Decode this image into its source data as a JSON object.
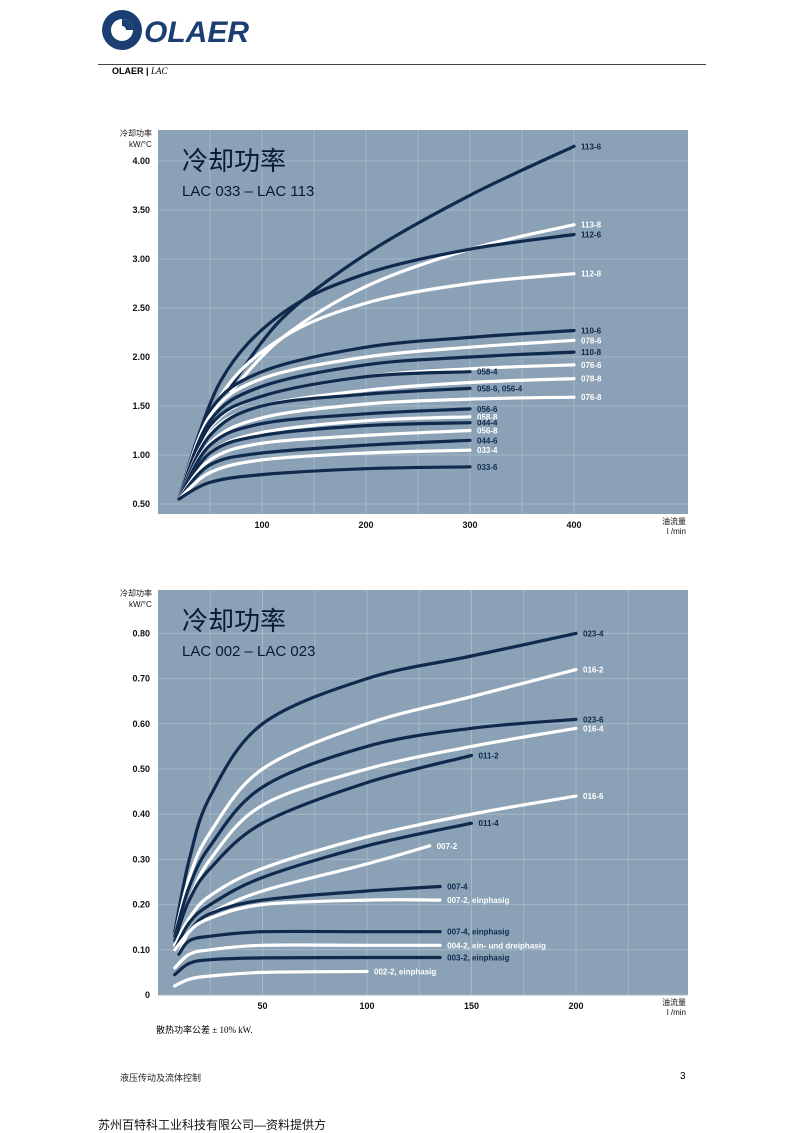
{
  "header": {
    "brand": "OLAER",
    "sub_brand": "OLAER |",
    "sub_product": "LAC"
  },
  "colors": {
    "panel": "#8aa1b6",
    "grid": "#a6b8c9",
    "dark_curve": "#0f2a4d",
    "light_curve": "#ffffff",
    "brand_blue": "#1c3f73"
  },
  "chart_data": [
    {
      "type": "line",
      "title": "冷却功率",
      "subtitle": "LAC 033 – LAC 113",
      "ylabel": "冷却功率",
      "yunit": "kW/°C",
      "xlabel": "油流量",
      "xunit": "l /min",
      "xlim": [
        0,
        400
      ],
      "ylim": [
        0.5,
        4.25
      ],
      "xticks": [
        "100",
        "200",
        "300",
        "400"
      ],
      "yticks": [
        "0.50",
        "1.00",
        "1.50",
        "2.00",
        "2.50",
        "3.00",
        "3.50",
        "4.00"
      ],
      "series": [
        {
          "name": "113-6",
          "color": "dark",
          "x": [
            70,
            120,
            200,
            300,
            400
          ],
          "y": [
            1.7,
            2.4,
            3.05,
            3.65,
            4.15
          ]
        },
        {
          "name": "113-8",
          "color": "light",
          "x": [
            70,
            120,
            200,
            300,
            400
          ],
          "y": [
            1.65,
            2.2,
            2.72,
            3.1,
            3.35
          ]
        },
        {
          "name": "112-6",
          "color": "dark",
          "x": [
            20,
            60,
            120,
            200,
            300,
            400
          ],
          "y": [
            0.55,
            1.75,
            2.45,
            2.85,
            3.1,
            3.25
          ]
        },
        {
          "name": "112-8",
          "color": "light",
          "x": [
            20,
            60,
            120,
            200,
            300,
            400
          ],
          "y": [
            0.55,
            1.6,
            2.2,
            2.55,
            2.75,
            2.85
          ]
        },
        {
          "name": "110-6",
          "color": "dark",
          "x": [
            20,
            50,
            100,
            200,
            300,
            400
          ],
          "y": [
            0.55,
            1.45,
            1.85,
            2.1,
            2.2,
            2.27
          ]
        },
        {
          "name": "078-6",
          "color": "light",
          "x": [
            20,
            50,
            100,
            200,
            300,
            400
          ],
          "y": [
            0.55,
            1.4,
            1.78,
            2.0,
            2.1,
            2.17
          ]
        },
        {
          "name": "110-8",
          "color": "dark",
          "x": [
            20,
            50,
            100,
            200,
            300,
            400
          ],
          "y": [
            0.55,
            1.35,
            1.7,
            1.92,
            2.0,
            2.05
          ]
        },
        {
          "name": "076-6",
          "color": "light",
          "x": [
            20,
            50,
            100,
            200,
            300,
            400
          ],
          "y": [
            0.55,
            1.28,
            1.6,
            1.8,
            1.88,
            1.92
          ]
        },
        {
          "name": "058-4",
          "color": "dark",
          "x": [
            20,
            50,
            100,
            200,
            300
          ],
          "y": [
            0.55,
            1.3,
            1.6,
            1.8,
            1.85
          ]
        },
        {
          "name": "078-8",
          "color": "light",
          "x": [
            20,
            50,
            100,
            200,
            300,
            400
          ],
          "y": [
            0.55,
            1.22,
            1.5,
            1.66,
            1.74,
            1.78
          ]
        },
        {
          "name": "058-6, 056-4",
          "color": "dark",
          "x": [
            20,
            50,
            100,
            200,
            300
          ],
          "y": [
            0.55,
            1.2,
            1.5,
            1.62,
            1.68
          ]
        },
        {
          "name": "076-8",
          "color": "light",
          "x": [
            20,
            50,
            100,
            200,
            300,
            400
          ],
          "y": [
            0.55,
            1.12,
            1.38,
            1.52,
            1.57,
            1.59
          ]
        },
        {
          "name": "056-6",
          "color": "dark",
          "x": [
            20,
            50,
            100,
            200,
            300
          ],
          "y": [
            0.55,
            1.1,
            1.32,
            1.42,
            1.47
          ]
        },
        {
          "name": "058-8",
          "color": "light",
          "x": [
            20,
            50,
            100,
            200,
            300
          ],
          "y": [
            0.55,
            1.02,
            1.23,
            1.35,
            1.39
          ]
        },
        {
          "name": "044-4",
          "color": "dark",
          "x": [
            20,
            50,
            100,
            200,
            300
          ],
          "y": [
            0.55,
            1.02,
            1.2,
            1.3,
            1.33
          ]
        },
        {
          "name": "056-8",
          "color": "light",
          "x": [
            20,
            50,
            100,
            200,
            300
          ],
          "y": [
            0.55,
            0.95,
            1.12,
            1.2,
            1.25
          ]
        },
        {
          "name": "044-6",
          "color": "dark",
          "x": [
            20,
            50,
            100,
            200,
            300
          ],
          "y": [
            0.55,
            0.9,
            1.02,
            1.1,
            1.15
          ]
        },
        {
          "name": "033-4",
          "color": "light",
          "x": [
            20,
            50,
            100,
            200,
            300
          ],
          "y": [
            0.55,
            0.82,
            0.95,
            1.02,
            1.05
          ]
        },
        {
          "name": "033-6",
          "color": "dark",
          "x": [
            20,
            50,
            100,
            200,
            300
          ],
          "y": [
            0.55,
            0.72,
            0.8,
            0.86,
            0.88
          ]
        }
      ]
    },
    {
      "type": "line",
      "title": "冷却功率",
      "subtitle": "LAC 002 – LAC 023",
      "ylabel": "冷却功率",
      "yunit": "kW/°C",
      "xlabel": "油流量",
      "xunit": "l /min",
      "xlim": [
        0,
        225
      ],
      "ylim": [
        0,
        0.85
      ],
      "xticks": [
        "50",
        "100",
        "150",
        "200"
      ],
      "yticks": [
        "0",
        "0.10",
        "0.20",
        "0.30",
        "0.40",
        "0.50",
        "0.60",
        "0.70",
        "0.80"
      ],
      "series": [
        {
          "name": "023-4",
          "color": "dark",
          "x": [
            8,
            15,
            25,
            50,
            100,
            150,
            200
          ],
          "y": [
            0.14,
            0.3,
            0.44,
            0.6,
            0.7,
            0.75,
            0.8
          ]
        },
        {
          "name": "016-2",
          "color": "light",
          "x": [
            8,
            15,
            25,
            50,
            100,
            150,
            200
          ],
          "y": [
            0.13,
            0.26,
            0.36,
            0.5,
            0.6,
            0.66,
            0.72
          ]
        },
        {
          "name": "023-6",
          "color": "dark",
          "x": [
            8,
            15,
            25,
            50,
            100,
            150,
            200
          ],
          "y": [
            0.13,
            0.24,
            0.33,
            0.46,
            0.55,
            0.59,
            0.61
          ]
        },
        {
          "name": "016-4",
          "color": "light",
          "x": [
            8,
            15,
            25,
            50,
            100,
            150,
            200
          ],
          "y": [
            0.12,
            0.21,
            0.3,
            0.42,
            0.5,
            0.55,
            0.59
          ]
        },
        {
          "name": "011-2",
          "color": "dark",
          "x": [
            8,
            15,
            25,
            50,
            100,
            150
          ],
          "y": [
            0.12,
            0.21,
            0.28,
            0.38,
            0.47,
            0.53
          ]
        },
        {
          "name": "016-6",
          "color": "light",
          "x": [
            8,
            15,
            25,
            50,
            100,
            150,
            200
          ],
          "y": [
            0.11,
            0.17,
            0.22,
            0.28,
            0.35,
            0.4,
            0.44
          ]
        },
        {
          "name": "011-4",
          "color": "dark",
          "x": [
            8,
            15,
            25,
            50,
            100,
            150
          ],
          "y": [
            0.1,
            0.16,
            0.2,
            0.26,
            0.33,
            0.38
          ]
        },
        {
          "name": "007-2",
          "color": "light",
          "x": [
            8,
            15,
            25,
            50,
            100,
            130
          ],
          "y": [
            0.1,
            0.14,
            0.18,
            0.23,
            0.29,
            0.33
          ]
        },
        {
          "name": "007-4",
          "color": "dark",
          "x": [
            10,
            15,
            25,
            50,
            100,
            135
          ],
          "y": [
            0.09,
            0.14,
            0.18,
            0.21,
            0.23,
            0.24
          ]
        },
        {
          "name": "007-2, einphasig",
          "color": "light",
          "x": [
            10,
            15,
            25,
            50,
            100,
            135
          ],
          "y": [
            0.09,
            0.14,
            0.17,
            0.2,
            0.21,
            0.21
          ]
        },
        {
          "name": "007-4, einphasig",
          "color": "dark",
          "x": [
            10,
            15,
            25,
            50,
            100,
            135
          ],
          "y": [
            0.09,
            0.12,
            0.13,
            0.14,
            0.14,
            0.14
          ]
        },
        {
          "name": "004-2, ein- und dreiphasig",
          "color": "light",
          "x": [
            8,
            15,
            25,
            50,
            100,
            135
          ],
          "y": [
            0.06,
            0.09,
            0.1,
            0.11,
            0.11,
            0.11
          ]
        },
        {
          "name": "003-2, einphasig",
          "color": "dark",
          "x": [
            8,
            15,
            25,
            50,
            100,
            135
          ],
          "y": [
            0.045,
            0.07,
            0.078,
            0.082,
            0.083,
            0.083
          ]
        },
        {
          "name": "002-2, einphasig",
          "color": "light",
          "x": [
            8,
            15,
            25,
            50,
            100
          ],
          "y": [
            0.02,
            0.035,
            0.042,
            0.05,
            0.052
          ]
        }
      ]
    }
  ],
  "footnote": "散热功率公差 ± 10% kW.",
  "footer": {
    "left": "液压传动及流体控制",
    "page": "3",
    "company": "苏州百特科工业科技有限公司—资料提供方"
  }
}
